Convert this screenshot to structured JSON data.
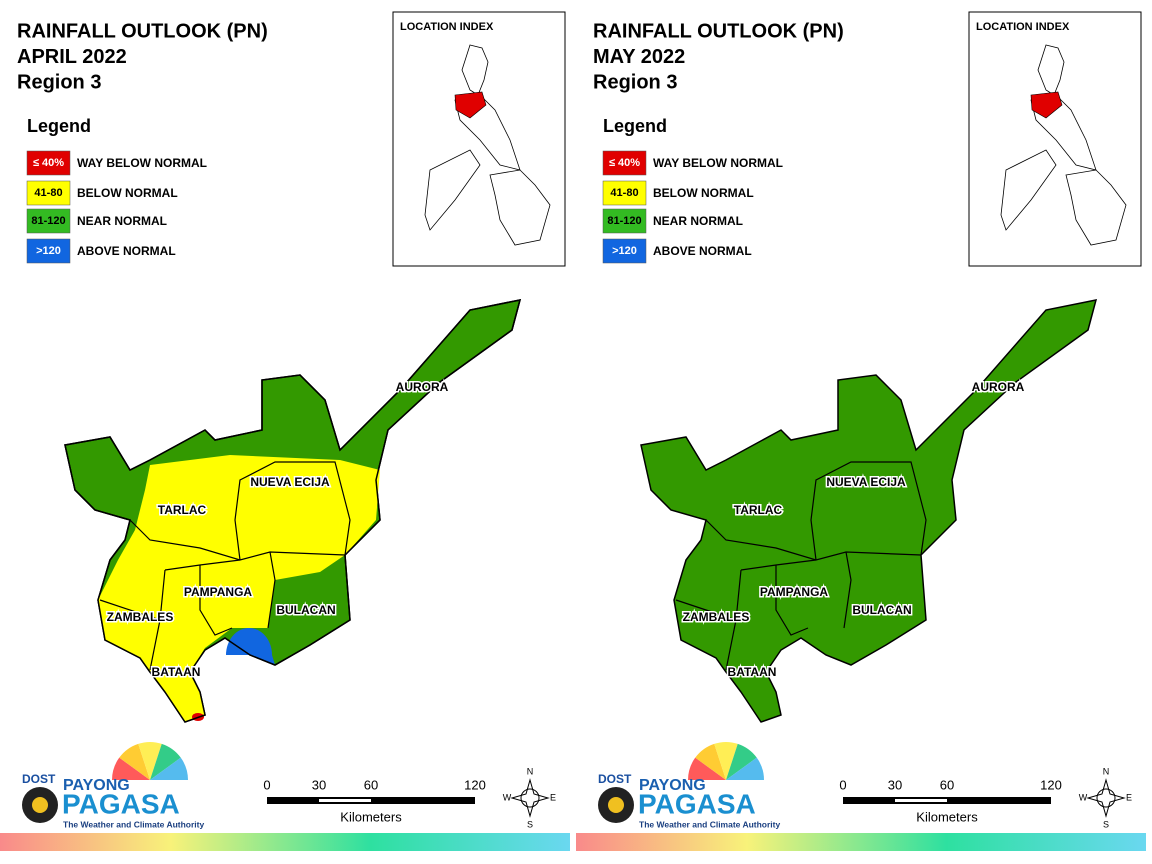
{
  "panels": [
    {
      "title": [
        "RAINFALL OUTLOOK (PN)",
        "APRIL 2022",
        "Region 3"
      ],
      "location_index": "LOCATION INDEX",
      "legend": {
        "title": "Legend",
        "items": [
          {
            "key": "≤ 40%",
            "label": "WAY BELOW NORMAL",
            "color": "#e00000"
          },
          {
            "key": "41-80",
            "label": "BELOW NORMAL",
            "color": "#ffff00"
          },
          {
            "key": "81-120",
            "label": "NEAR NORMAL",
            "color": "#33bb22"
          },
          {
            "key": ">120",
            "label": "ABOVE NORMAL",
            "color": "#1166e0"
          }
        ]
      },
      "provinces": [
        "AURORA",
        "NUEVA ECIJA",
        "TARLAC",
        "PAMPANGA",
        "ZAMBALES",
        "BULACAN",
        "BATAAN"
      ],
      "scale": {
        "ticks": [
          0,
          30,
          60,
          120
        ],
        "unit": "Kilometers"
      },
      "compass": [
        "N",
        "E",
        "S",
        "W"
      ],
      "logo": {
        "dost": "DOST",
        "payong": "PAYONG",
        "pagasa": "PAGASA",
        "tagline": "The Weather and Climate Authority"
      }
    },
    {
      "title": [
        "RAINFALL OUTLOOK (PN)",
        "MAY 2022",
        "Region 3"
      ],
      "location_index": "LOCATION INDEX",
      "legend": {
        "title": "Legend",
        "items": [
          {
            "key": "≤ 40%",
            "label": "WAY BELOW NORMAL",
            "color": "#e00000"
          },
          {
            "key": "41-80",
            "label": "BELOW NORMAL",
            "color": "#ffff00"
          },
          {
            "key": "81-120",
            "label": "NEAR NORMAL",
            "color": "#33bb22"
          },
          {
            "key": ">120",
            "label": "ABOVE NORMAL",
            "color": "#1166e0"
          }
        ]
      },
      "provinces": [
        "AURORA",
        "NUEVA ECIJA",
        "TARLAC",
        "PAMPANGA",
        "ZAMBALES",
        "BULACAN",
        "BATAAN"
      ],
      "scale": {
        "ticks": [
          0,
          30,
          60,
          120
        ],
        "unit": "Kilometers"
      },
      "compass": [
        "N",
        "E",
        "S",
        "W"
      ],
      "logo": {
        "dost": "DOST",
        "payong": "PAYONG",
        "pagasa": "PAGASA",
        "tagline": "The Weather and Climate Authority"
      }
    }
  ]
}
